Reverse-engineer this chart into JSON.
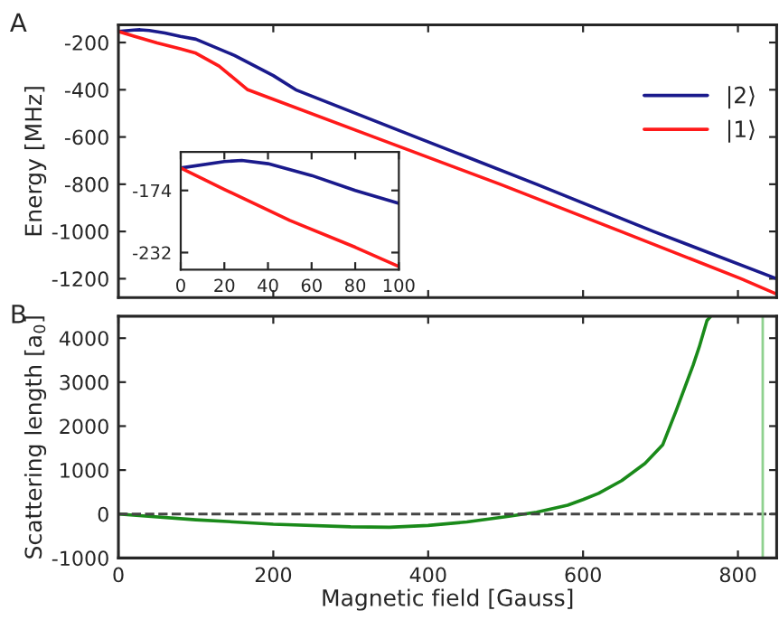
{
  "chart_data": [
    {
      "type": "line",
      "ylabel": "Energy [MHz]",
      "annotations": [
        "A"
      ],
      "xlim": [
        0,
        850
      ],
      "ylim": [
        -1280,
        -125
      ],
      "xticks": [
        {
          "value": 0,
          "label": null
        },
        {
          "value": 200,
          "label": null
        },
        {
          "value": 400,
          "label": null
        },
        {
          "value": 600,
          "label": null
        },
        {
          "value": 800,
          "label": null
        }
      ],
      "yticks": [
        -200,
        -400,
        -600,
        -800,
        -1000,
        -1200
      ],
      "tick_labels": "y",
      "legend": "top right",
      "series": [
        {
          "name": "|2⟩",
          "color": "#1a1a8c",
          "x": [
            0,
            20,
            28,
            40,
            60,
            80,
            100,
            150,
            200,
            229,
            384,
            540,
            691,
            850
          ],
          "values": [
            -153,
            -147,
            -146,
            -149,
            -160,
            -174,
            -186,
            -255,
            -340,
            -400,
            -600,
            -800,
            -1000,
            -1200
          ]
        },
        {
          "name": "|1⟩",
          "color": "#ff1a1a",
          "x": [
            0,
            20,
            50,
            80,
            100,
            130,
            167,
            330,
            493,
            649,
            804,
            850
          ],
          "values": [
            -153,
            -173,
            -202,
            -227,
            -245,
            -300,
            -400,
            -600,
            -800,
            -1000,
            -1200,
            -1265
          ]
        }
      ]
    },
    {
      "type": "line",
      "xlim": [
        0,
        100
      ],
      "ylim": [
        -248,
        -138
      ],
      "xticks": [
        0,
        20,
        40,
        60,
        80,
        100
      ],
      "yticks": [
        -174,
        -232
      ],
      "series": [
        {
          "color": "#1a1a8c",
          "x": [
            0,
            20,
            28,
            40,
            60,
            80,
            100
          ],
          "values": [
            -153,
            -147,
            -146,
            -149,
            -160,
            -174,
            -186
          ]
        },
        {
          "color": "#ff1a1a",
          "x": [
            0,
            20,
            50,
            80,
            100
          ],
          "values": [
            -153,
            -173,
            -202,
            -227,
            -245
          ]
        }
      ]
    },
    {
      "type": "line",
      "xlabel": "Magnetic field [Gauss]",
      "ylabel": "Scattering length [a$_{0}$]",
      "annotations": [
        "B"
      ],
      "xlim": [
        0,
        850
      ],
      "ylim": [
        -1000,
        4500
      ],
      "xticks": [
        0,
        200,
        400,
        600,
        800
      ],
      "yticks": [
        -1000,
        0,
        1000,
        2000,
        3000,
        4000
      ],
      "ref_lines": [
        {
          "axis": "y",
          "value": 0,
          "color": "#444444",
          "line_style": "dashed"
        },
        {
          "axis": "x",
          "value": 832,
          "color": "#8fd18f",
          "line_style": "solid"
        }
      ],
      "series": [
        {
          "color": "#1a8a1a",
          "x": [
            0,
            100,
            200,
            300,
            350,
            400,
            450,
            500,
            540,
            580,
            600,
            620,
            650,
            680,
            703,
            720,
            742,
            750,
            760,
            765
          ],
          "values": [
            0,
            -130,
            -230,
            -290,
            -300,
            -260,
            -180,
            -60,
            40,
            200,
            330,
            470,
            760,
            1150,
            1580,
            2340,
            3380,
            3800,
            4400,
            4500
          ]
        }
      ]
    }
  ]
}
